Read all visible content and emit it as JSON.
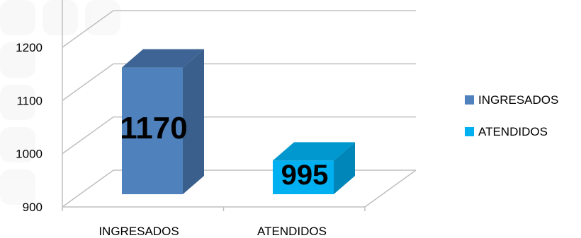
{
  "chart_data": {
    "type": "bar",
    "categories": [
      "INGRESADOS",
      "ATENDIDOS"
    ],
    "values": [
      1170,
      995
    ],
    "data_labels": [
      "1170",
      "995"
    ],
    "colors": {
      "INGRESADOS": {
        "front": "#4f81bd",
        "side": "#3a5f8c",
        "top": "#3d6494"
      },
      "ATENDIDOS": {
        "front": "#00b0f0",
        "side": "#0086b8",
        "top": "#0098cf"
      }
    },
    "y_ticks": [
      "900",
      "1000",
      "1100",
      "1200"
    ],
    "ylim": [
      900,
      1200
    ],
    "legend": {
      "position": "right",
      "items": [
        {
          "label": "INGRESADOS",
          "color": "#4f81bd"
        },
        {
          "label": "ATENDIDOS",
          "color": "#00b0f0"
        }
      ]
    },
    "gridlines": true,
    "style": "3d-column"
  }
}
